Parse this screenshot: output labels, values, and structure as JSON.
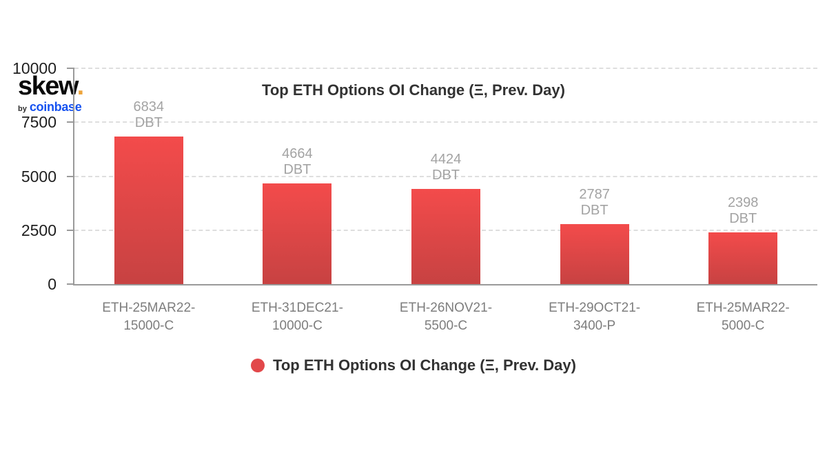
{
  "logo": {
    "brand": "skew",
    "dot": ".",
    "by": "by",
    "coinbase": "coinbase",
    "dot_color": "#eda43b",
    "coinbase_color": "#1652f0"
  },
  "title": "Top ETH Options OI Change (Ξ, Prev. Day)",
  "legend": {
    "label": "Top ETH Options OI Change (Ξ, Prev. Day)",
    "marker_color": "#e2484a"
  },
  "chart_data": {
    "type": "bar",
    "title": "Top ETH Options OI Change (Ξ, Prev. Day)",
    "categories": [
      "ETH-25MAR22-15000-C",
      "ETH-31DEC21-10000-C",
      "ETH-26NOV21-5500-C",
      "ETH-29OCT21-3400-P",
      "ETH-25MAR22-5000-C"
    ],
    "category_lines": [
      [
        "ETH-25MAR22-",
        "15000-C"
      ],
      [
        "ETH-31DEC21-",
        "10000-C"
      ],
      [
        "ETH-26NOV21-",
        "5500-C"
      ],
      [
        "ETH-29OCT21-",
        "3400-P"
      ],
      [
        "ETH-25MAR22-",
        "5000-C"
      ]
    ],
    "values": [
      6834,
      4664,
      4424,
      2787,
      2398
    ],
    "value_unit": "DBT",
    "xlabel": "",
    "ylabel": "",
    "yticks": [
      0,
      2500,
      5000,
      7500,
      10000
    ],
    "ylim": [
      0,
      10000
    ],
    "grid": "horizontal-dashed",
    "legend_position": "bottom",
    "bar_color_top": "#f34b4b",
    "bar_color_bottom": "#c74242"
  }
}
